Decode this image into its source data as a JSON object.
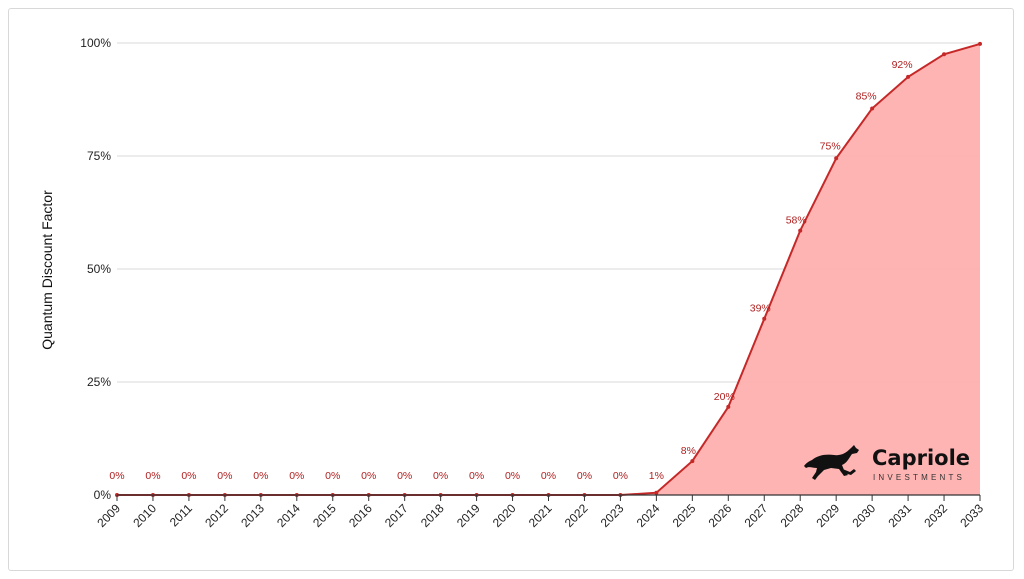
{
  "chart_data": {
    "type": "area",
    "title": "",
    "xlabel": "",
    "ylabel": "Quantum Discount Factor",
    "ylim": [
      0,
      1
    ],
    "y_ticks": [
      {
        "value": 0,
        "label": "0%"
      },
      {
        "value": 0.25,
        "label": "25%"
      },
      {
        "value": 0.5,
        "label": "50%"
      },
      {
        "value": 0.75,
        "label": "75%"
      },
      {
        "value": 1,
        "label": "100%"
      }
    ],
    "grid": true,
    "categories": [
      "2009",
      "2010",
      "2011",
      "2012",
      "2013",
      "2014",
      "2015",
      "2016",
      "2017",
      "2018",
      "2019",
      "2020",
      "2021",
      "2022",
      "2023",
      "2024",
      "2025",
      "2026",
      "2027",
      "2028",
      "2029",
      "2030",
      "2031",
      "2032",
      "2033"
    ],
    "values": [
      0,
      0,
      0,
      0,
      0,
      0,
      0,
      0,
      0,
      0,
      0,
      0,
      0,
      0,
      0,
      0.005,
      0.075,
      0.195,
      0.39,
      0.585,
      0.745,
      0.855,
      0.925,
      0.975,
      0.998
    ],
    "data_labels": [
      "0%",
      "0%",
      "0%",
      "0%",
      "0%",
      "0%",
      "0%",
      "0%",
      "0%",
      "0%",
      "0%",
      "0%",
      "0%",
      "0%",
      "0%",
      "1%",
      "8%",
      "20%",
      "39%",
      "58%",
      "75%",
      "85%",
      "92%",
      "",
      ""
    ],
    "colors": {
      "line": "#c62828",
      "fill": "#fdb0ae",
      "grid": "#d9d9d9",
      "label": "#b11f1f"
    }
  },
  "logo": {
    "name": "Capriole",
    "subtitle": "INVESTMENTS",
    "icon": "horse-icon"
  }
}
